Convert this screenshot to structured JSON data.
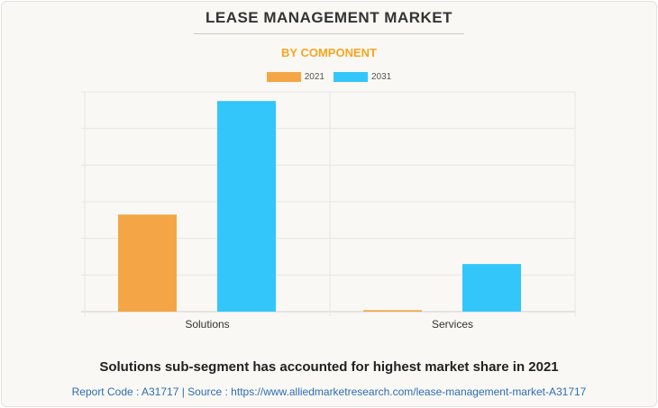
{
  "colors": {
    "y2021": "#f4a646",
    "y2031": "#33c6fb",
    "subtitle": "#f5a623",
    "source": "#2e6db4"
  },
  "header": {
    "title": "LEASE MANAGEMENT MARKET",
    "subtitle": "BY COMPONENT"
  },
  "footer": {
    "headline": "Solutions sub-segment has accounted for highest market share in 2021",
    "source": "Report Code : A31717  |  Source : https://www.alliedmarketresearch.com/lease-management-market-A31717"
  },
  "chart_data": {
    "type": "bar",
    "title": "LEASE MANAGEMENT MARKET",
    "subtitle": "BY COMPONENT",
    "categories": [
      "Solutions",
      "Services"
    ],
    "series": [
      {
        "name": "2021",
        "values": [
          26.5,
          0.4
        ]
      },
      {
        "name": "2031",
        "values": [
          57.5,
          13
        ]
      }
    ],
    "ylim": [
      0,
      60
    ],
    "grid": true,
    "legend": "top-center",
    "xlabel": "",
    "ylabel": ""
  }
}
